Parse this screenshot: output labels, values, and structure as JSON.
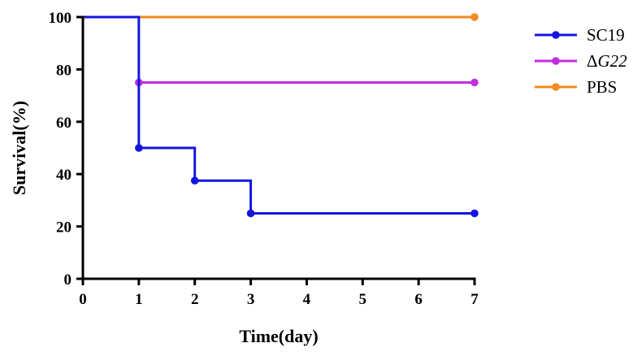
{
  "chart_data": {
    "type": "line",
    "step": true,
    "xlabel": "Time(day)",
    "ylabel": "Survival(%)",
    "xlim": [
      0,
      7
    ],
    "ylim": [
      0,
      100
    ],
    "x_ticks": [
      "0",
      "1",
      "2",
      "3",
      "4",
      "5",
      "6",
      "7"
    ],
    "y_ticks": [
      "0",
      "20",
      "40",
      "60",
      "80",
      "100"
    ],
    "grid": false,
    "legend_position": "top-right",
    "series": [
      {
        "name": "SC19",
        "name_prefix": "",
        "color": "#1515e0",
        "points": [
          [
            0,
            100
          ],
          [
            1,
            50
          ],
          [
            2,
            37.5
          ],
          [
            3,
            25
          ],
          [
            7,
            25
          ]
        ],
        "markers": [
          [
            1,
            50
          ],
          [
            2,
            37.5
          ],
          [
            3,
            25
          ],
          [
            7,
            25
          ]
        ]
      },
      {
        "name": "G22",
        "name_prefix": "Δ",
        "name_italic": true,
        "color": "#c12ee0",
        "points": [
          [
            1,
            75
          ],
          [
            7,
            75
          ]
        ],
        "markers": [
          [
            1,
            75
          ],
          [
            7,
            75
          ]
        ]
      },
      {
        "name": "PBS",
        "name_prefix": "",
        "color": "#f5891f",
        "points": [
          [
            1,
            100
          ],
          [
            7,
            100
          ]
        ],
        "markers": [
          [
            7,
            100
          ]
        ]
      }
    ]
  }
}
